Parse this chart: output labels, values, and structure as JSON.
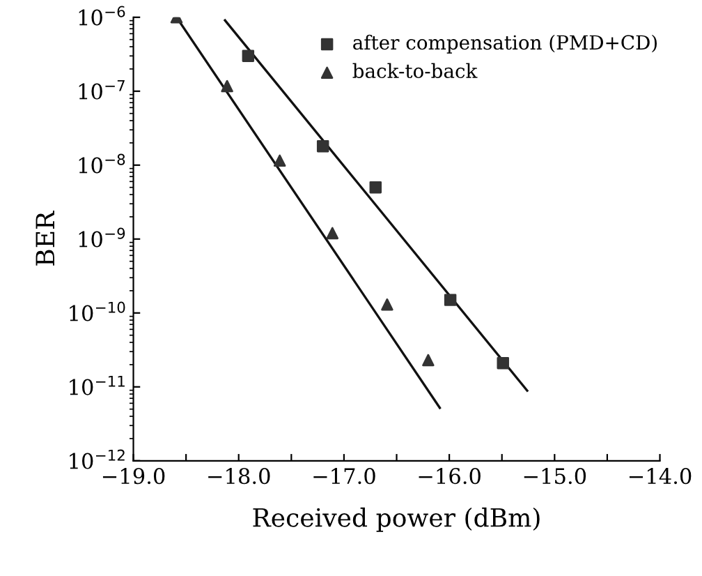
{
  "chart_data": {
    "type": "scatter",
    "xlabel": "Received power (dBm)",
    "ylabel": "BER",
    "log": "y",
    "legend": "top right",
    "grid": false,
    "xlim": [
      -19.0,
      -14.0
    ],
    "xticks": [
      {
        "value": -19.0,
        "label": "−19.0"
      },
      {
        "value": -18.5,
        "label": null
      },
      {
        "value": -18.0,
        "label": "−18.0"
      },
      {
        "value": -17.5,
        "label": null
      },
      {
        "value": -17.0,
        "label": "−17.0"
      },
      {
        "value": -16.5,
        "label": null
      },
      {
        "value": -16.0,
        "label": "−16.0"
      },
      {
        "value": -15.5,
        "label": null
      },
      {
        "value": -15.0,
        "label": "−15.0"
      },
      {
        "value": -14.5,
        "label": null
      },
      {
        "value": -14.0,
        "label": "−14.0"
      }
    ],
    "ylim": [
      1e-12,
      1e-06
    ],
    "yticks": [
      {
        "value": 1e-12,
        "label": "10$^{−12}$"
      },
      {
        "value": 1e-11,
        "label": "10$^{−11}$"
      },
      {
        "value": 1e-10,
        "label": "10$^{−10}$"
      },
      {
        "value": 1e-09,
        "label": "10$^{−9}$"
      },
      {
        "value": 1e-08,
        "label": "10$^{−8}$"
      },
      {
        "value": 1e-07,
        "label": "10$^{−7}$"
      },
      {
        "value": 1e-06,
        "label": "10$^{−6}$"
      }
    ],
    "series": [
      {
        "name": "after compensation (PMD+CD)",
        "marker": "square",
        "color": "#333333",
        "x": [
          -17.91,
          -17.2,
          -16.7,
          -15.99,
          -15.49
        ],
        "values": [
          3e-07,
          1.8e-08,
          5e-09,
          1.5e-10,
          2.1e-11
        ]
      },
      {
        "name": "back-to-back",
        "marker": "triangle",
        "color": "#333333",
        "x": [
          -18.59,
          -18.11,
          -17.61,
          -17.11,
          -16.59,
          -16.2
        ],
        "values": [
          1e-06,
          1.17e-07,
          1.15e-08,
          1.2e-09,
          1.3e-10,
          2.3e-11
        ]
      },
      {
        "type": "line",
        "marker": "none",
        "color": "#111111",
        "x": [
          -18.13,
          -15.26
        ],
        "values": [
          9.1e-07,
          8.9e-12
        ]
      },
      {
        "type": "line",
        "marker": "none",
        "color": "#111111",
        "x": [
          -18.59,
          -16.09
        ],
        "values": [
          1e-06,
          5.2e-12
        ]
      }
    ]
  }
}
